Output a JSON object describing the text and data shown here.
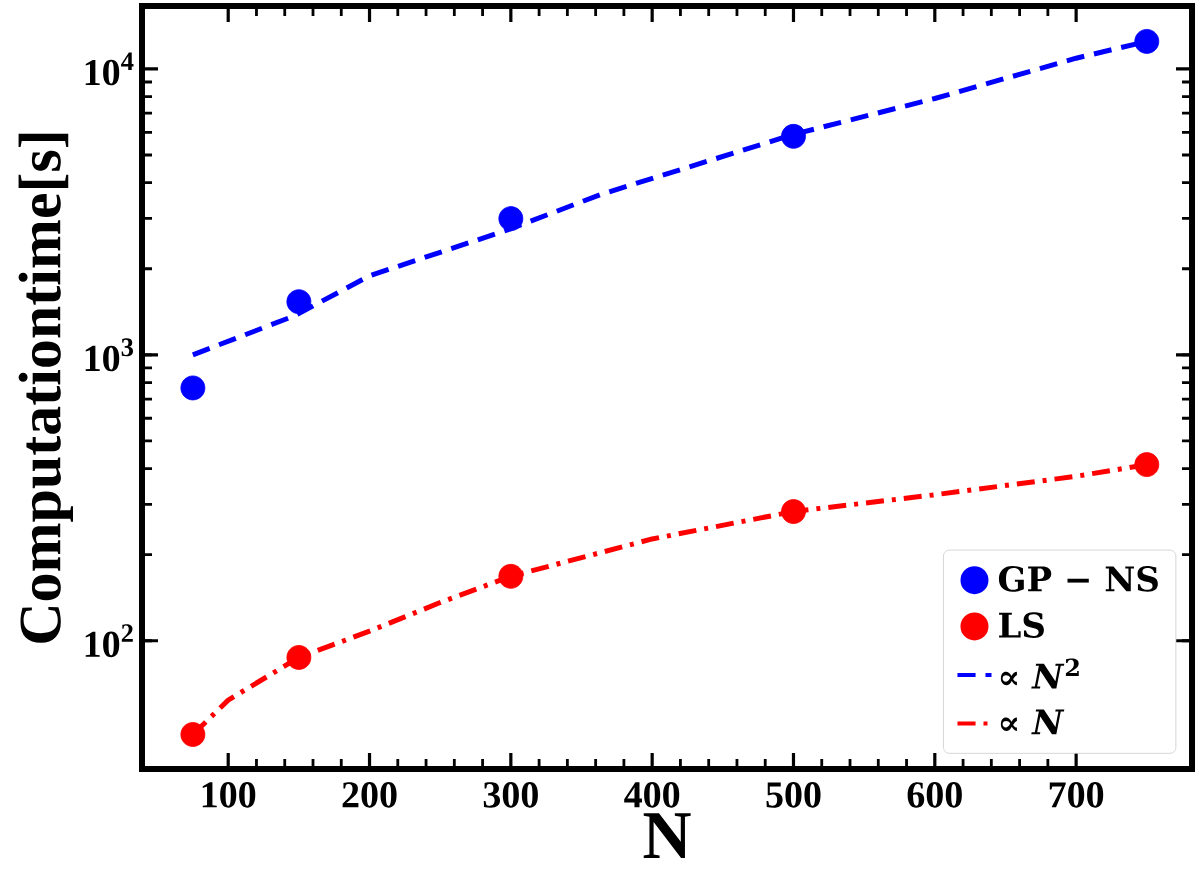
{
  "chart_data": {
    "type": "scatter",
    "xlabel": "N",
    "ylabel": "Computationtime[s]",
    "log": "y",
    "xlim": [
      39,
      782
    ],
    "ylim": [
      35.6,
      16600
    ],
    "xticks": [
      100,
      200,
      300,
      400,
      500,
      600,
      700
    ],
    "yticks": [
      {
        "value": 100,
        "label": "10$^{2}$"
      },
      {
        "value": 1000,
        "label": "10$^{3}$"
      },
      {
        "value": 10000,
        "label": "10$^{4}$"
      }
    ],
    "grid": false,
    "legend": "bottom right",
    "series": [
      {
        "name": "GP − NS",
        "marker": "circle",
        "color": "#0000ff",
        "x": [
          75,
          150,
          300,
          500,
          750
        ],
        "values": [
          766,
          1534,
          2995,
          5810,
          12480
        ]
      },
      {
        "name": "LS",
        "marker": "circle",
        "color": "#ff0000",
        "x": [
          75,
          150,
          300,
          500,
          750
        ],
        "values": [
          47,
          87.4,
          168,
          283,
          413
        ]
      },
      {
        "name": "∝ *N*$^{2}$",
        "type": "line",
        "marker": "none",
        "line_style": "dashed",
        "color": "#0000ff",
        "x": [
          75,
          147,
          200,
          300,
          363,
          500,
          600,
          700,
          750
        ],
        "values": [
          1000,
          1370,
          1890,
          2760,
          3630,
          5900,
          7880,
          10900,
          12480
        ]
      },
      {
        "name": "∝ *N*",
        "type": "line",
        "marker": "none",
        "line_style": "dashdot",
        "color": "#ff0000",
        "x": [
          75,
          100,
          150,
          200,
          250,
          300,
          400,
          500,
          600,
          700,
          750
        ],
        "values": [
          47,
          62,
          87.4,
          108,
          136,
          168,
          227,
          283,
          324,
          376,
          413
        ]
      }
    ]
  }
}
